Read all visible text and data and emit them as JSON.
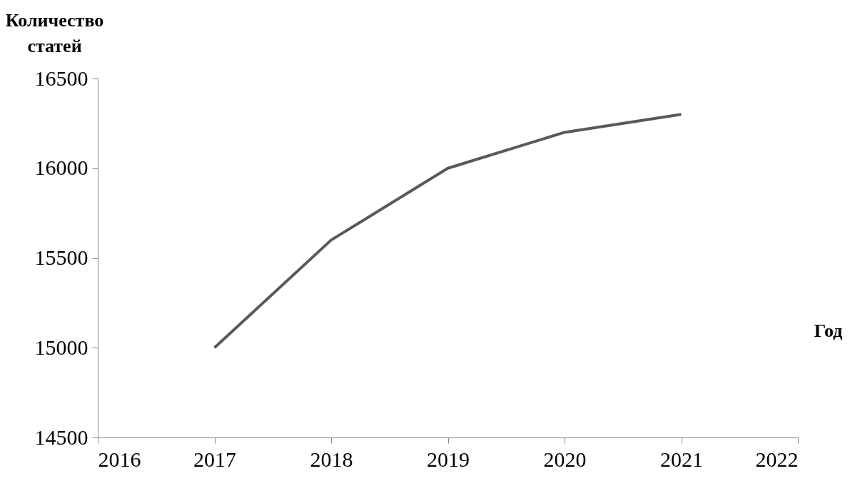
{
  "chart_data": {
    "type": "line",
    "xlabel": "Год",
    "ylabel": "Количество статей",
    "x": [
      2017,
      2018,
      2019,
      2020,
      2021
    ],
    "series": [
      {
        "color": "#595959",
        "values": [
          15000,
          15600,
          16000,
          16200,
          16300
        ]
      }
    ],
    "xlim": [
      2016,
      2022
    ],
    "xticks": [
      2016,
      2017,
      2018,
      2019,
      2020,
      2021,
      2022
    ],
    "ylim": [
      14500,
      16500
    ],
    "yticks": [
      14500,
      15000,
      15500,
      16000,
      16500
    ],
    "grid": false,
    "marker": "none",
    "line_style": "solid"
  }
}
